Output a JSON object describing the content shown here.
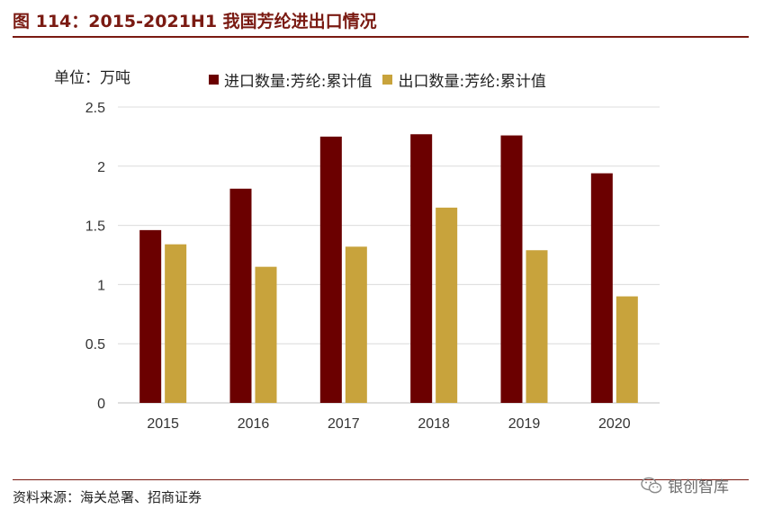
{
  "title": "图 114：2015-2021H1 我国芳纶进出口情况",
  "unit_label": "单位：万吨",
  "source": "资料来源：海关总署、招商证券",
  "watermark": "银创智库",
  "colors": {
    "import": "#6b0000",
    "export": "#c8a33c",
    "accent": "#7a1a12"
  },
  "chart_data": {
    "type": "bar",
    "categories": [
      "2015",
      "2016",
      "2017",
      "2018",
      "2019",
      "2020"
    ],
    "series": [
      {
        "name": "进口数量:芳纶:累计值",
        "values": [
          1.46,
          1.81,
          2.25,
          2.27,
          2.26,
          1.94
        ]
      },
      {
        "name": "出口数量:芳纶:累计值",
        "values": [
          1.34,
          1.15,
          1.32,
          1.65,
          1.29,
          0.9
        ]
      }
    ],
    "ylim": [
      0,
      2.5
    ],
    "yticks": [
      "0",
      "0.5",
      "1",
      "1.5",
      "2",
      "2.5"
    ],
    "grid": true,
    "legend": "top"
  }
}
